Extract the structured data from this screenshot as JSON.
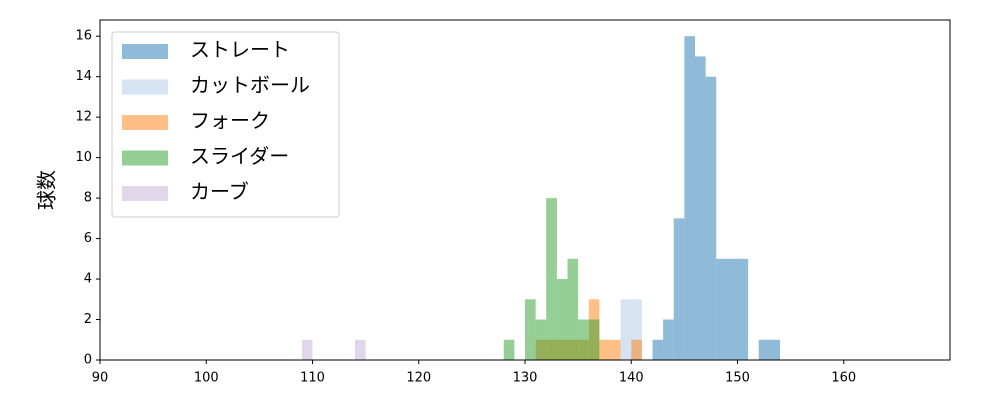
{
  "chart_data": {
    "type": "histogram",
    "y_label": "球数",
    "xlim": [
      90,
      170
    ],
    "ylim": [
      0,
      16.8
    ],
    "xticks": [
      90,
      100,
      110,
      120,
      130,
      140,
      150,
      160
    ],
    "yticks": [
      0,
      2,
      4,
      6,
      8,
      10,
      12,
      14,
      16
    ],
    "alpha": 0.5,
    "legend": "upper left",
    "series": [
      {
        "name": "ストレート",
        "color": "#1f77b4",
        "bins": [
          142,
          143,
          144,
          145,
          146,
          147,
          148,
          149,
          150,
          151,
          152,
          153,
          154
        ],
        "values": [
          1,
          2,
          7,
          16,
          15,
          14,
          5,
          5,
          5,
          0,
          1,
          1
        ]
      },
      {
        "name": "カットボール",
        "color": "#aec7e8",
        "bins": [
          139,
          140,
          141
        ],
        "values": [
          3,
          3
        ]
      },
      {
        "name": "フォーク",
        "color": "#ff7f0e",
        "bins": [
          131,
          132,
          133,
          134,
          135,
          136,
          137,
          138,
          139,
          140,
          141
        ],
        "values": [
          1,
          1,
          1,
          1,
          1,
          3,
          1,
          1,
          0,
          1
        ]
      },
      {
        "name": "スライダー",
        "color": "#2ca02c",
        "bins": [
          128,
          129,
          130,
          131,
          132,
          133,
          134,
          135,
          136,
          137
        ],
        "values": [
          1,
          0,
          3,
          2,
          8,
          4,
          5,
          2,
          2
        ]
      },
      {
        "name": "カーブ",
        "color": "#c5b0d5",
        "bins": [
          109,
          110,
          111,
          112,
          113,
          114,
          115
        ],
        "values": [
          1,
          0,
          0,
          0,
          0,
          1
        ]
      }
    ]
  }
}
